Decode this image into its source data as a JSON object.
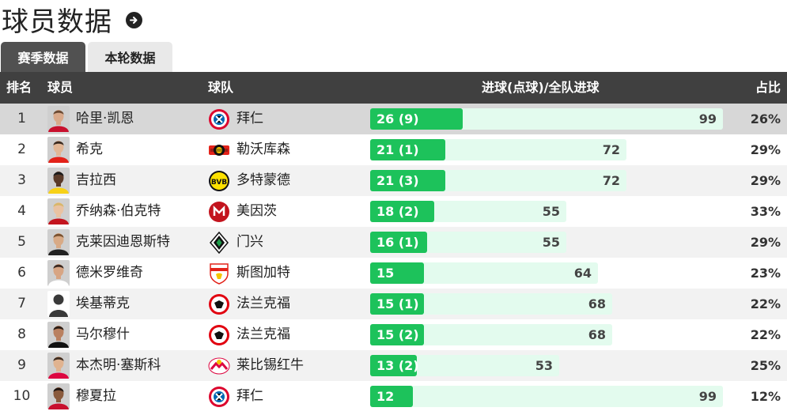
{
  "page": {
    "title": "球员数据",
    "tabs": [
      "赛季数据",
      "本轮数据"
    ]
  },
  "table": {
    "headers": [
      "排名",
      "球员",
      "球队",
      "进球(点球)/全队进球",
      "占比"
    ],
    "rows": [
      {
        "rank": "1",
        "player": "哈里·凯恩",
        "team": "拜仁",
        "goals": "26 (9)",
        "goal_count": 26,
        "team_goals": "99",
        "ratio": "26%",
        "highlight": true,
        "photo": "kane",
        "logo": "bayern"
      },
      {
        "rank": "2",
        "player": "希克",
        "team": "勒沃库森",
        "goals": "21 (1)",
        "goal_count": 21,
        "team_goals": "72",
        "ratio": "29%",
        "photo": "schick",
        "logo": "leverkusen"
      },
      {
        "rank": "3",
        "player": "吉拉西",
        "team": "多特蒙德",
        "goals": "21 (3)",
        "goal_count": 21,
        "team_goals": "72",
        "ratio": "29%",
        "photo": "guirassy",
        "logo": "dortmund"
      },
      {
        "rank": "4",
        "player": "乔纳森·伯克特",
        "team": "美因茨",
        "goals": "18 (2)",
        "goal_count": 18,
        "team_goals": "55",
        "ratio": "33%",
        "photo": "burkardt",
        "logo": "mainz"
      },
      {
        "rank": "5",
        "player": "克莱因迪恩斯特",
        "team": "门兴",
        "goals": "16 (1)",
        "goal_count": 16,
        "team_goals": "55",
        "ratio": "29%",
        "photo": "kleindienst",
        "logo": "gladbach"
      },
      {
        "rank": "6",
        "player": "德米罗维奇",
        "team": "斯图加特",
        "goals": "15",
        "goal_count": 15,
        "team_goals": "64",
        "ratio": "23%",
        "photo": "demirovic",
        "logo": "stuttgart"
      },
      {
        "rank": "7",
        "player": "埃基蒂克",
        "team": "法兰克福",
        "goals": "15 (1)",
        "goal_count": 15,
        "team_goals": "68",
        "ratio": "22%",
        "photo": "placeholder",
        "logo": "frankfurt"
      },
      {
        "rank": "8",
        "player": "马尔穆什",
        "team": "法兰克福",
        "goals": "15 (2)",
        "goal_count": 15,
        "team_goals": "68",
        "ratio": "22%",
        "photo": "marmoush",
        "logo": "frankfurt"
      },
      {
        "rank": "9",
        "player": "本杰明·塞斯科",
        "team": "莱比锡红牛",
        "goals": "13 (2)",
        "goal_count": 13,
        "team_goals": "53",
        "ratio": "25%",
        "photo": "sesko",
        "logo": "leipzig"
      },
      {
        "rank": "10",
        "player": "穆夏拉",
        "team": "拜仁",
        "goals": "12",
        "goal_count": 12,
        "team_goals": "99",
        "ratio": "12%",
        "photo": "musiala",
        "logo": "bayern"
      }
    ]
  },
  "colors": {
    "header_bg": "#404040",
    "bar_fill": "#1dc25b",
    "bar_track": "#e3fbee",
    "active_tab": "#515151"
  }
}
